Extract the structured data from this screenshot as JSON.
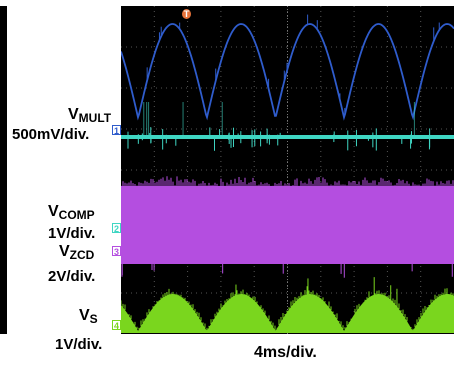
{
  "channels": [
    {
      "id": "mult",
      "name_main": "V",
      "name_sub": "MULT",
      "scale": "500mV/div.",
      "marker": "1",
      "color": "#2f5ccc"
    },
    {
      "id": "comp",
      "name_main": "V",
      "name_sub": "COMP",
      "scale": "1V/div.",
      "marker": "2",
      "color": "#3fd6c3"
    },
    {
      "id": "zcd",
      "name_main": "V",
      "name_sub": "ZCD",
      "scale": "2V/div.",
      "marker": "3",
      "color": "#b44ee0"
    },
    {
      "id": "vs",
      "name_main": "V",
      "name_sub": "S",
      "scale": "1V/div.",
      "marker": "4",
      "color": "#7ad61e"
    }
  ],
  "timebase": "4ms/div.",
  "trigger_marker": "T",
  "trigger_color": "#e8733a",
  "chart_data": {
    "type": "line",
    "grid": true,
    "grid_divisions": {
      "x": 10,
      "y": 8
    },
    "series": [
      {
        "name": "VMULT",
        "waveform": "rectified-sine",
        "half_cycles_visible": 5,
        "description_color": "#2f5ccc"
      },
      {
        "name": "VCOMP",
        "waveform": "flat-with-spikes"
      },
      {
        "name": "VZCD",
        "waveform": "high-frequency-switching-band"
      },
      {
        "name": "VS",
        "waveform": "rectified-sine-envelope-switching"
      }
    ]
  }
}
